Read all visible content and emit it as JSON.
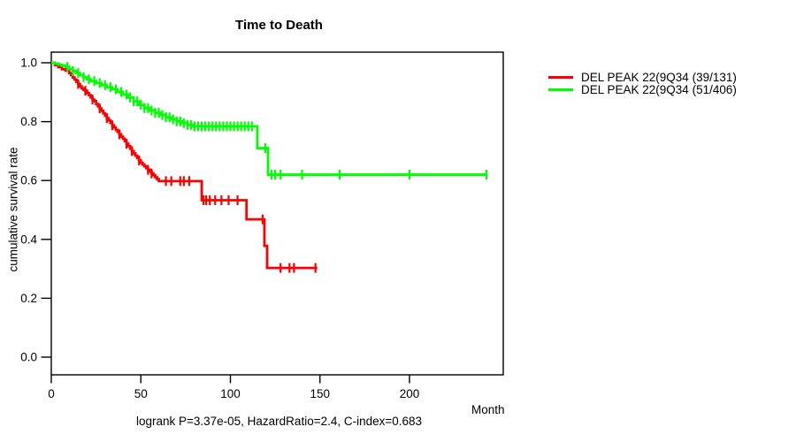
{
  "chart_data": {
    "type": "line",
    "subtype": "kaplan-meier-step-curve",
    "title": "Time to Death",
    "xlabel": "Month",
    "ylabel": "cumulative survival rate",
    "annotation": "logrank P=3.37e-05, HazardRatio=2.4, C-index=0.683",
    "x_ticks": [
      0,
      50,
      100,
      150,
      200
    ],
    "y_ticks": [
      "0.0",
      "0.2",
      "0.4",
      "0.6",
      "0.8",
      "1.0"
    ],
    "xlim": [
      0,
      252
    ],
    "ylim": [
      -0.06,
      1.04
    ],
    "grid": false,
    "legend_position": "right-outside",
    "axis_color": "#000000",
    "series": [
      {
        "name": "DEL PEAK 22(9Q34 (39/131)",
        "color": "#ff0000",
        "end_time": 148.5,
        "steps": [
          [
            0,
            1.0
          ],
          [
            2,
            0.992
          ],
          [
            4,
            0.985
          ],
          [
            6,
            0.978
          ],
          [
            8,
            0.973
          ],
          [
            10,
            0.965
          ],
          [
            11,
            0.958
          ],
          [
            12,
            0.95
          ],
          [
            13,
            0.943
          ],
          [
            14,
            0.935
          ],
          [
            15,
            0.928
          ],
          [
            16,
            0.92
          ],
          [
            17,
            0.913
          ],
          [
            18,
            0.908
          ],
          [
            19,
            0.905
          ],
          [
            20,
            0.897
          ],
          [
            21,
            0.89
          ],
          [
            22,
            0.882
          ],
          [
            23,
            0.875
          ],
          [
            24,
            0.87
          ],
          [
            25,
            0.86
          ],
          [
            26,
            0.852
          ],
          [
            27,
            0.845
          ],
          [
            28,
            0.837
          ],
          [
            29,
            0.828
          ],
          [
            30,
            0.82
          ],
          [
            31,
            0.812
          ],
          [
            32,
            0.804
          ],
          [
            33,
            0.796
          ],
          [
            34,
            0.788
          ],
          [
            35,
            0.78
          ],
          [
            36,
            0.772
          ],
          [
            37,
            0.765
          ],
          [
            38,
            0.757
          ],
          [
            39,
            0.749
          ],
          [
            40,
            0.742
          ],
          [
            41,
            0.734
          ],
          [
            42,
            0.725
          ],
          [
            43,
            0.717
          ],
          [
            44,
            0.708
          ],
          [
            45,
            0.7
          ],
          [
            46,
            0.692
          ],
          [
            47,
            0.684
          ],
          [
            48,
            0.676
          ],
          [
            49,
            0.668
          ],
          [
            50,
            0.66
          ],
          [
            51,
            0.654
          ],
          [
            52,
            0.648
          ],
          [
            53,
            0.642
          ],
          [
            54,
            0.636
          ],
          [
            55,
            0.63
          ],
          [
            56,
            0.624
          ],
          [
            57,
            0.618
          ],
          [
            58,
            0.611
          ],
          [
            59,
            0.605
          ],
          [
            60,
            0.598
          ],
          [
            84,
            0.533
          ],
          [
            109,
            0.468
          ],
          [
            119,
            0.378
          ],
          [
            120.5,
            0.303
          ]
        ],
        "censor_times": [
          15,
          19,
          23,
          27,
          31,
          34,
          38,
          42,
          45,
          49,
          54,
          56,
          64,
          67,
          72,
          74,
          77,
          85,
          86.5,
          88.5,
          91.5,
          95,
          99,
          104,
          118,
          128,
          133,
          135.5,
          147.5
        ]
      },
      {
        "name": "DEL PEAK 22(9Q34 (51/406)",
        "color": "#00ff00",
        "end_time": 243,
        "steps": [
          [
            0,
            1.0
          ],
          [
            2,
            0.997
          ],
          [
            4,
            0.994
          ],
          [
            6,
            0.99
          ],
          [
            8,
            0.986
          ],
          [
            10,
            0.979
          ],
          [
            12,
            0.972
          ],
          [
            14,
            0.965
          ],
          [
            16,
            0.958
          ],
          [
            18,
            0.951
          ],
          [
            20,
            0.944
          ],
          [
            22,
            0.938
          ],
          [
            25,
            0.931
          ],
          [
            28,
            0.924
          ],
          [
            31,
            0.917
          ],
          [
            34,
            0.91
          ],
          [
            37,
            0.901
          ],
          [
            40,
            0.892
          ],
          [
            43,
            0.882
          ],
          [
            46,
            0.869
          ],
          [
            49,
            0.857
          ],
          [
            52,
            0.846
          ],
          [
            55,
            0.838
          ],
          [
            58,
            0.83
          ],
          [
            61,
            0.822
          ],
          [
            64,
            0.815
          ],
          [
            67,
            0.808
          ],
          [
            70,
            0.801
          ],
          [
            73,
            0.795
          ],
          [
            76,
            0.789
          ],
          [
            79,
            0.784
          ],
          [
            115,
            0.71
          ],
          [
            121,
            0.62
          ]
        ],
        "censor_times": [
          9,
          12,
          15,
          18,
          21,
          24,
          27,
          30,
          33,
          36,
          39,
          42,
          44,
          46,
          48,
          50,
          52,
          54,
          56,
          58,
          60,
          62,
          64,
          66,
          68,
          70,
          72,
          74,
          76,
          78,
          80,
          82,
          84,
          86,
          88,
          90,
          92,
          94,
          96,
          98,
          100,
          102,
          104,
          106,
          108,
          110,
          112,
          119.5,
          123,
          125,
          128,
          140,
          161,
          200,
          243
        ]
      }
    ]
  }
}
